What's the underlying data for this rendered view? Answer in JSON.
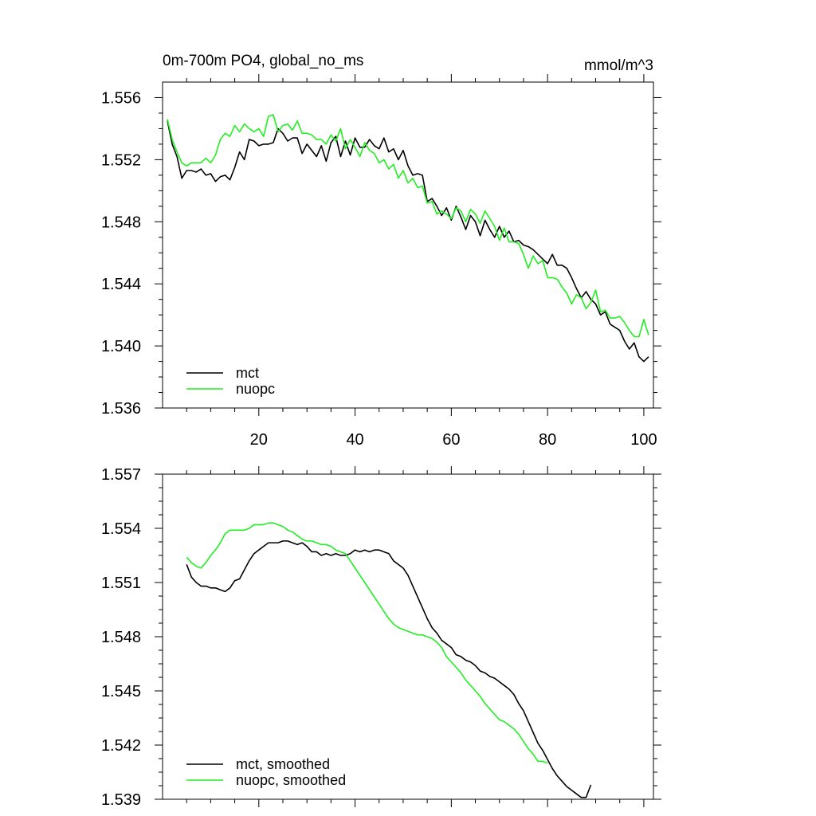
{
  "figure": {
    "title_left": "0m-700m PO4, global_no_ms",
    "title_right": "mmol/m^3"
  },
  "colors": {
    "mct": "#000000",
    "nuopc": "#22ee22"
  },
  "chart_data": [
    {
      "type": "line",
      "title": "0m-700m PO4, global_no_ms",
      "units": "mmol/m^3",
      "xlim": [
        0,
        102
      ],
      "ylim": [
        1.536,
        1.557
      ],
      "yticks": [
        "1.536",
        "1.540",
        "1.544",
        "1.548",
        "1.552",
        "1.556"
      ],
      "xticks": [
        "20",
        "40",
        "60",
        "80",
        "100"
      ],
      "legend": [
        "mct",
        "nuopc"
      ],
      "legend_position": "bottom-left",
      "series": [
        {
          "name": "mct",
          "color": "#000000",
          "x0": 1,
          "values": [
            1.5545,
            1.553,
            1.5522,
            1.5508,
            1.5513,
            1.5513,
            1.5512,
            1.5514,
            1.551,
            1.5511,
            1.5506,
            1.5509,
            1.551,
            1.5507,
            1.5515,
            1.5525,
            1.552,
            1.5533,
            1.5532,
            1.5529,
            1.553,
            1.553,
            1.5531,
            1.554,
            1.5537,
            1.5532,
            1.5534,
            1.5534,
            1.5524,
            1.553,
            1.5526,
            1.5522,
            1.5529,
            1.5519,
            1.5531,
            1.5535,
            1.5522,
            1.5532,
            1.5523,
            1.5534,
            1.5528,
            1.5528,
            1.5533,
            1.5529,
            1.5527,
            1.5534,
            1.5525,
            1.5527,
            1.552,
            1.5526,
            1.5516,
            1.551,
            1.5511,
            1.551,
            1.5493,
            1.5495,
            1.549,
            1.5484,
            1.5489,
            1.5481,
            1.549,
            1.5483,
            1.5475,
            1.5484,
            1.548,
            1.5471,
            1.5481,
            1.5475,
            1.547,
            1.5477,
            1.547,
            1.5474,
            1.5467,
            1.5468,
            1.5465,
            1.5464,
            1.5462,
            1.5459,
            1.5456,
            1.5453,
            1.5459,
            1.5452,
            1.5452,
            1.545,
            1.5444,
            1.5437,
            1.5431,
            1.5435,
            1.543,
            1.5427,
            1.542,
            1.5422,
            1.5414,
            1.5412,
            1.541,
            1.5403,
            1.5398,
            1.5402,
            1.5393,
            1.539,
            1.5393
          ]
        },
        {
          "name": "nuopc",
          "color": "#22ee22",
          "x0": 1,
          "values": [
            1.5546,
            1.5533,
            1.5525,
            1.5518,
            1.5516,
            1.5518,
            1.5518,
            1.5518,
            1.5521,
            1.5518,
            1.5523,
            1.5533,
            1.5537,
            1.5535,
            1.5542,
            1.5538,
            1.5543,
            1.554,
            1.5538,
            1.554,
            1.5535,
            1.5548,
            1.5549,
            1.5538,
            1.5542,
            1.5543,
            1.5539,
            1.5545,
            1.5537,
            1.5537,
            1.5536,
            1.5533,
            1.5533,
            1.553,
            1.5536,
            1.5532,
            1.554,
            1.5527,
            1.5533,
            1.5528,
            1.5522,
            1.5531,
            1.5526,
            1.5524,
            1.5518,
            1.552,
            1.5514,
            1.5517,
            1.5508,
            1.5513,
            1.5505,
            1.5508,
            1.5502,
            1.5503,
            1.5492,
            1.5493,
            1.5485,
            1.5487,
            1.5485,
            1.5482,
            1.5489,
            1.5487,
            1.548,
            1.5488,
            1.5485,
            1.5479,
            1.5487,
            1.5482,
            1.5477,
            1.5468,
            1.5476,
            1.5467,
            1.5467,
            1.5466,
            1.5459,
            1.545,
            1.5458,
            1.5453,
            1.5455,
            1.5444,
            1.5444,
            1.5443,
            1.5438,
            1.5434,
            1.5427,
            1.5433,
            1.5431,
            1.5424,
            1.5428,
            1.5436,
            1.5422,
            1.5423,
            1.5418,
            1.5418,
            1.5419,
            1.5415,
            1.541,
            1.5406,
            1.5406,
            1.5417,
            1.5407
          ]
        }
      ]
    },
    {
      "type": "line",
      "xlim": [
        0,
        102
      ],
      "ylim": [
        1.539,
        1.557
      ],
      "yticks": [
        "1.539",
        "1.542",
        "1.545",
        "1.548",
        "1.551",
        "1.554",
        "1.557"
      ],
      "xticks": [],
      "legend": [
        "mct, smoothed",
        "nuopc, smoothed"
      ],
      "legend_position": "bottom-left",
      "series": [
        {
          "name": "mct, smoothed",
          "color": "#000000",
          "x0": 5,
          "values": [
            1.552,
            1.5513,
            1.551,
            1.5508,
            1.5508,
            1.5507,
            1.5507,
            1.5506,
            1.5505,
            1.5507,
            1.5511,
            1.5512,
            1.5517,
            1.5522,
            1.5526,
            1.5528,
            1.553,
            1.5532,
            1.5532,
            1.5532,
            1.5533,
            1.5533,
            1.5532,
            1.5531,
            1.5532,
            1.553,
            1.5527,
            1.5527,
            1.5525,
            1.5526,
            1.5525,
            1.5526,
            1.5525,
            1.5525,
            1.5526,
            1.5528,
            1.5527,
            1.5528,
            1.5527,
            1.5528,
            1.5528,
            1.5527,
            1.5526,
            1.5522,
            1.552,
            1.5518,
            1.5514,
            1.5508,
            1.5502,
            1.5496,
            1.549,
            1.5485,
            1.5482,
            1.5478,
            1.5476,
            1.5474,
            1.547,
            1.5469,
            1.5467,
            1.5466,
            1.5464,
            1.5461,
            1.546,
            1.5458,
            1.5457,
            1.5455,
            1.5453,
            1.5451,
            1.5448,
            1.5443,
            1.5439,
            1.5433,
            1.5427,
            1.5421,
            1.5417,
            1.5412,
            1.5407,
            1.5403,
            1.54,
            1.5397,
            1.5395,
            1.5393,
            1.5391,
            1.5391,
            1.5398
          ]
        },
        {
          "name": "nuopc, smoothed",
          "color": "#22ee22",
          "x0": 5,
          "values": [
            1.5524,
            1.5521,
            1.5519,
            1.5518,
            1.5521,
            1.5525,
            1.5528,
            1.5532,
            1.5537,
            1.5539,
            1.5539,
            1.5539,
            1.5539,
            1.554,
            1.5542,
            1.5542,
            1.5542,
            1.5543,
            1.5543,
            1.5542,
            1.5541,
            1.5539,
            1.5538,
            1.5536,
            1.5534,
            1.5533,
            1.5533,
            1.5532,
            1.5531,
            1.5531,
            1.553,
            1.5528,
            1.5527,
            1.5526,
            1.5522,
            1.5518,
            1.5514,
            1.551,
            1.5506,
            1.5502,
            1.5498,
            1.5494,
            1.549,
            1.5487,
            1.5485,
            1.5484,
            1.5483,
            1.5482,
            1.5481,
            1.5481,
            1.548,
            1.5479,
            1.5477,
            1.5474,
            1.5469,
            1.5466,
            1.5463,
            1.546,
            1.5456,
            1.5453,
            1.545,
            1.5447,
            1.5443,
            1.544,
            1.5437,
            1.5434,
            1.5433,
            1.5431,
            1.5429,
            1.5426,
            1.5422,
            1.5418,
            1.5415,
            1.5411,
            1.5411,
            1.541
          ]
        }
      ]
    }
  ]
}
